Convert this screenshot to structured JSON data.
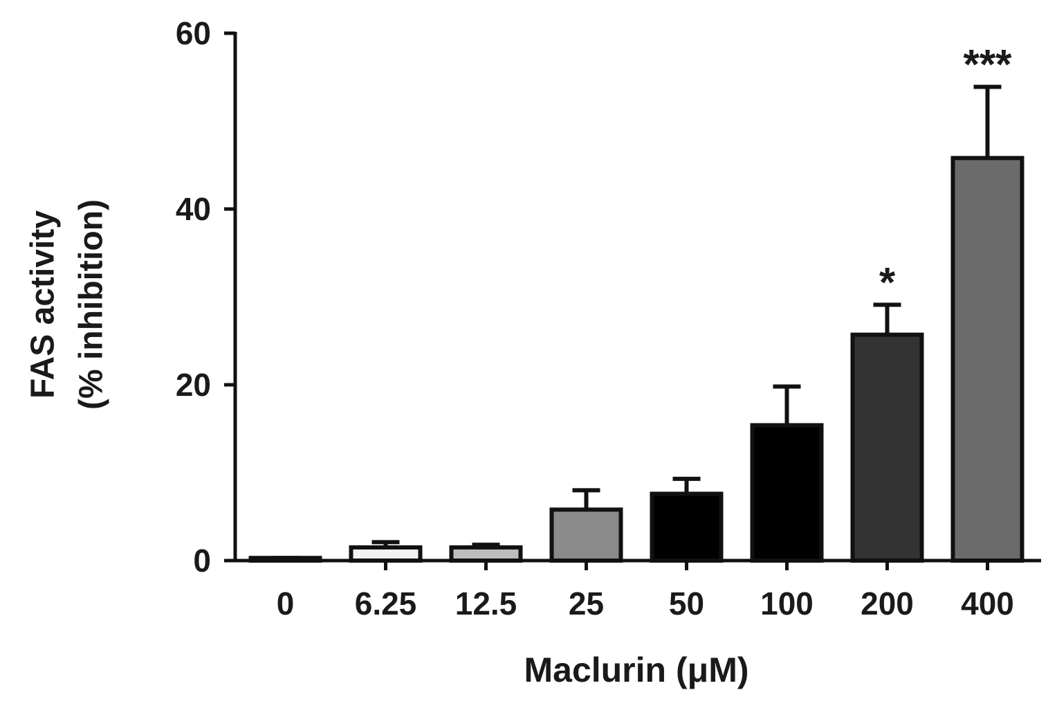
{
  "chart_data": {
    "type": "bar",
    "x_label": "Maclurin (μM)",
    "y_label": [
      "FAS activity",
      "(% inhibition)"
    ],
    "categories": [
      "0",
      "6.25",
      "12.5",
      "25",
      "50",
      "100",
      "200",
      "400"
    ],
    "values": [
      0.3,
      1.5,
      1.5,
      5.8,
      7.6,
      15.4,
      25.7,
      45.8
    ],
    "errors": [
      0,
      0.6,
      0.3,
      2.2,
      1.7,
      4.4,
      3.4,
      8.1
    ],
    "colors": [
      "#ffffff",
      "#f2f2f2",
      "#bdbdbd",
      "#8a8a8a",
      "#000000",
      "#000000",
      "#333333",
      "#6b6b6b"
    ],
    "significance": [
      null,
      null,
      null,
      null,
      null,
      null,
      "*",
      "***"
    ],
    "ylim": [
      0,
      60
    ],
    "yticks": [
      0,
      20,
      40,
      60
    ]
  }
}
